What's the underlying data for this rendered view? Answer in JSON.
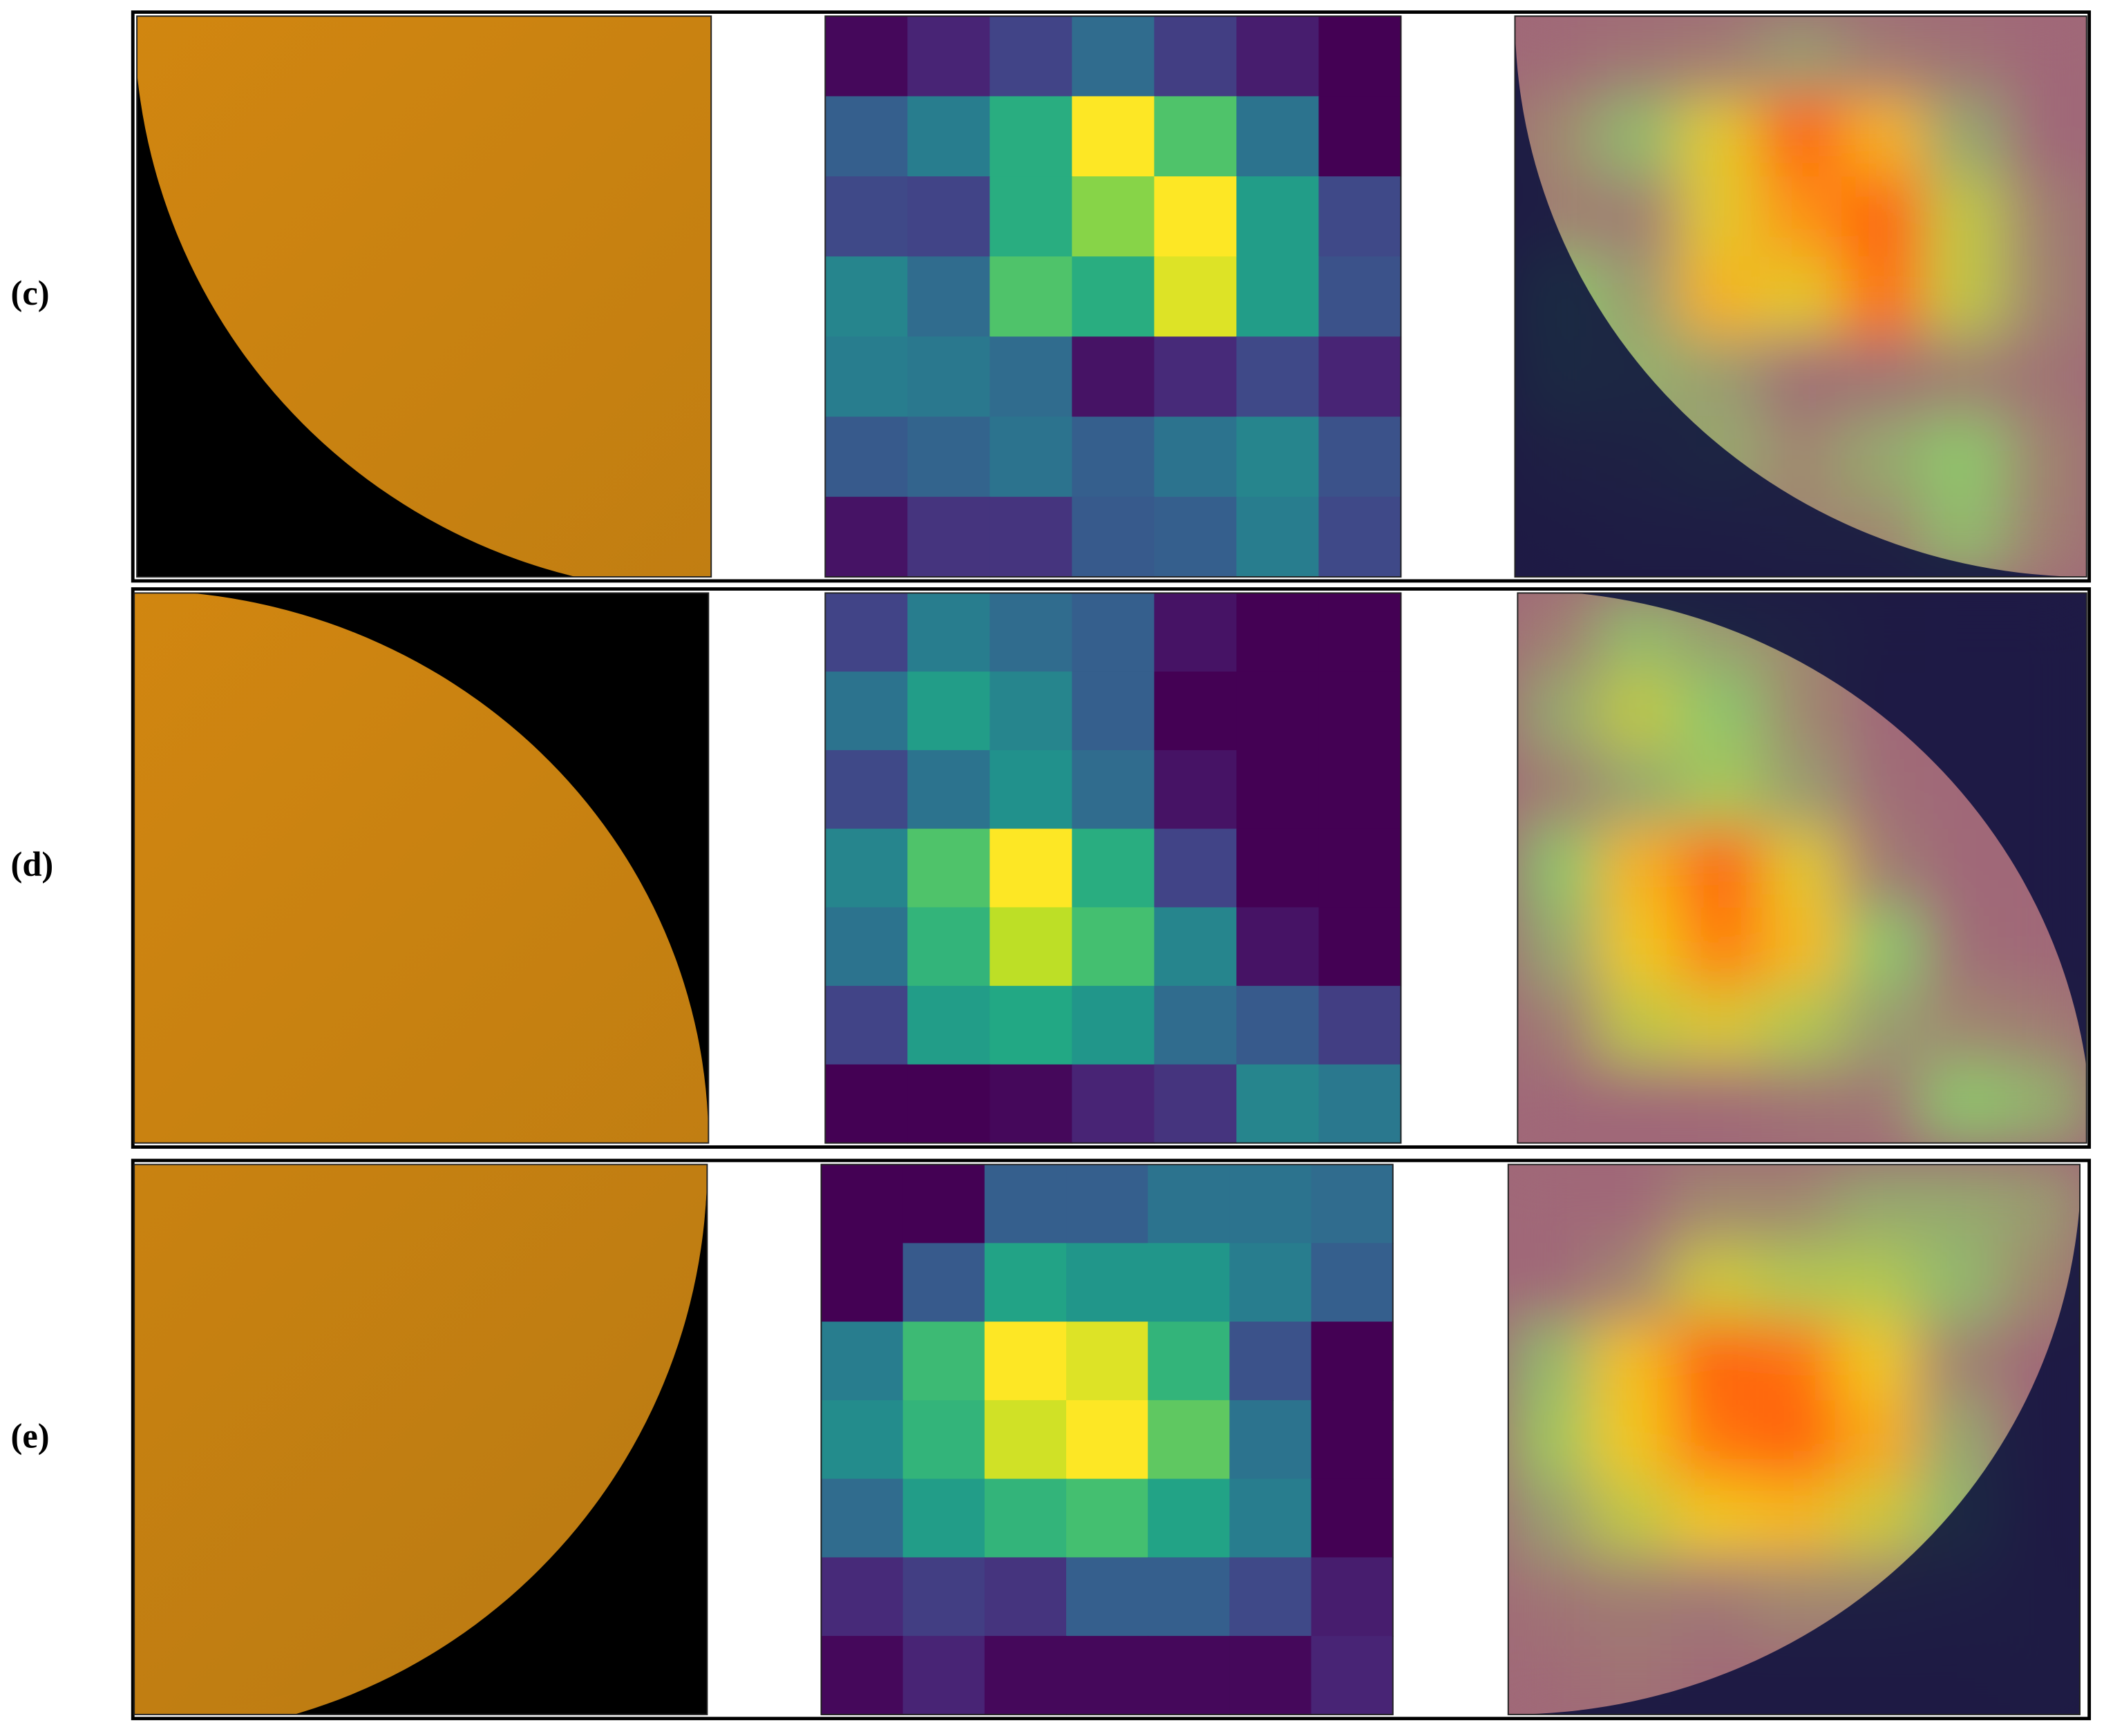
{
  "panels": [
    {
      "label": "(c)",
      "heatmap": [
        [
          0.02,
          0.1,
          0.2,
          0.35,
          0.18,
          0.08,
          0.0
        ],
        [
          0.3,
          0.42,
          0.62,
          1.0,
          0.72,
          0.38,
          0.0
        ],
        [
          0.22,
          0.2,
          0.62,
          0.82,
          1.0,
          0.55,
          0.22
        ],
        [
          0.45,
          0.35,
          0.72,
          0.62,
          0.95,
          0.55,
          0.25
        ],
        [
          0.42,
          0.4,
          0.35,
          0.05,
          0.12,
          0.22,
          0.1
        ],
        [
          0.28,
          0.32,
          0.38,
          0.3,
          0.38,
          0.45,
          0.25
        ],
        [
          0.05,
          0.15,
          0.15,
          0.28,
          0.3,
          0.42,
          0.22
        ]
      ]
    },
    {
      "label": "(d)",
      "heatmap": [
        [
          0.2,
          0.42,
          0.35,
          0.3,
          0.05,
          0.0,
          0.0
        ],
        [
          0.38,
          0.55,
          0.45,
          0.3,
          0.0,
          0.0,
          0.0
        ],
        [
          0.22,
          0.38,
          0.5,
          0.35,
          0.05,
          0.0,
          0.0
        ],
        [
          0.45,
          0.72,
          1.0,
          0.62,
          0.2,
          0.0,
          0.0
        ],
        [
          0.38,
          0.65,
          0.9,
          0.7,
          0.45,
          0.05,
          0.0
        ],
        [
          0.2,
          0.55,
          0.6,
          0.52,
          0.35,
          0.28,
          0.18
        ],
        [
          0.0,
          0.0,
          0.02,
          0.1,
          0.15,
          0.45,
          0.4
        ]
      ]
    },
    {
      "label": "(e)",
      "heatmap": [
        [
          0.0,
          0.0,
          0.3,
          0.3,
          0.38,
          0.38,
          0.35
        ],
        [
          0.0,
          0.28,
          0.58,
          0.52,
          0.52,
          0.42,
          0.3
        ],
        [
          0.42,
          0.68,
          1.0,
          0.95,
          0.65,
          0.25,
          0.0
        ],
        [
          0.48,
          0.65,
          0.93,
          1.0,
          0.75,
          0.38,
          0.0
        ],
        [
          0.35,
          0.55,
          0.65,
          0.7,
          0.58,
          0.42,
          0.0
        ],
        [
          0.12,
          0.18,
          0.15,
          0.3,
          0.3,
          0.22,
          0.08
        ],
        [
          0.02,
          0.1,
          0.02,
          0.02,
          0.02,
          0.02,
          0.1
        ]
      ]
    }
  ]
}
